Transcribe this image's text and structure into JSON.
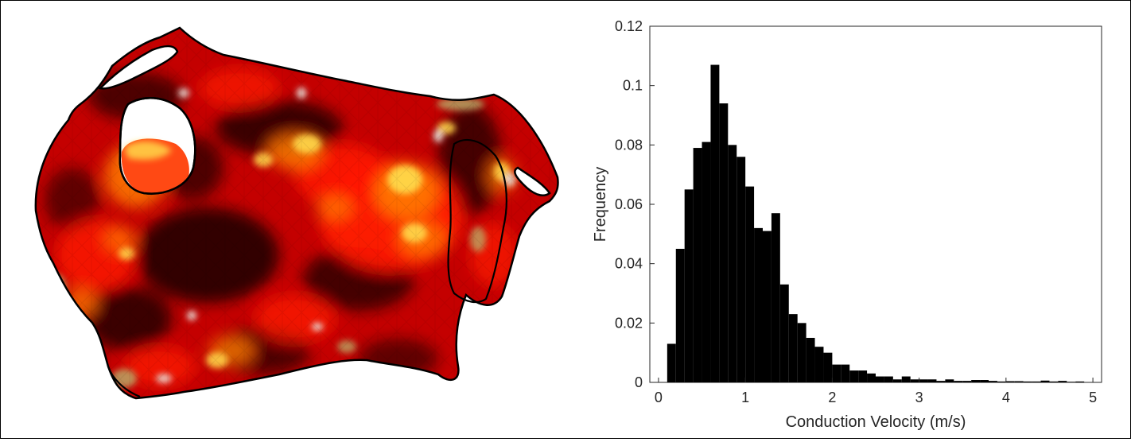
{
  "mesh": {
    "colors": {
      "dark": "#1a0000",
      "base": "#c40000",
      "red": "#ff1a00",
      "orange": "#ff7a00",
      "yellow": "#ffd84a",
      "pale": "#e8e0d8",
      "olive": "#b8b06a"
    }
  },
  "chart_data": {
    "type": "bar",
    "title": "",
    "xlabel": "Conduction Velocity (m/s)",
    "ylabel": "Frequency",
    "xlim": [
      -0.1,
      5.1
    ],
    "ylim": [
      0,
      0.12
    ],
    "xticks": [
      0,
      1,
      2,
      3,
      4,
      5
    ],
    "yticks": [
      0,
      0.02,
      0.04,
      0.06,
      0.08,
      0.1,
      0.12
    ],
    "xtick_labels": [
      "0",
      "1",
      "2",
      "3",
      "4",
      "5"
    ],
    "ytick_labels": [
      "0",
      "0.02",
      "0.04",
      "0.06",
      "0.08",
      "0.1",
      "0.12"
    ],
    "grid": false,
    "bar_color": "#000000",
    "bin_width": 0.1,
    "bins_start": [
      0.1,
      0.2,
      0.3,
      0.4,
      0.5,
      0.6,
      0.7,
      0.8,
      0.9,
      1.0,
      1.1,
      1.2,
      1.3,
      1.4,
      1.5,
      1.6,
      1.7,
      1.8,
      1.9,
      2.0,
      2.1,
      2.2,
      2.3,
      2.4,
      2.5,
      2.6,
      2.7,
      2.8,
      2.9,
      3.0,
      3.1,
      3.2,
      3.3,
      3.4,
      3.5,
      3.6,
      3.7,
      3.8,
      3.9,
      4.0,
      4.1,
      4.2,
      4.3,
      4.4,
      4.5,
      4.6,
      4.7,
      4.8
    ],
    "values": [
      0.013,
      0.045,
      0.065,
      0.079,
      0.081,
      0.107,
      0.094,
      0.08,
      0.076,
      0.066,
      0.052,
      0.051,
      0.057,
      0.033,
      0.023,
      0.02,
      0.015,
      0.012,
      0.01,
      0.006,
      0.006,
      0.004,
      0.004,
      0.003,
      0.002,
      0.002,
      0.001,
      0.002,
      0.001,
      0.001,
      0.001,
      0.0005,
      0.001,
      0.0005,
      0.0005,
      0.0008,
      0.0008,
      0.0005,
      0.0003,
      0.0004,
      0.0004,
      0.0003,
      0.0003,
      0.0006,
      0.0003,
      0.0005,
      0.0002,
      0.0003
    ]
  }
}
